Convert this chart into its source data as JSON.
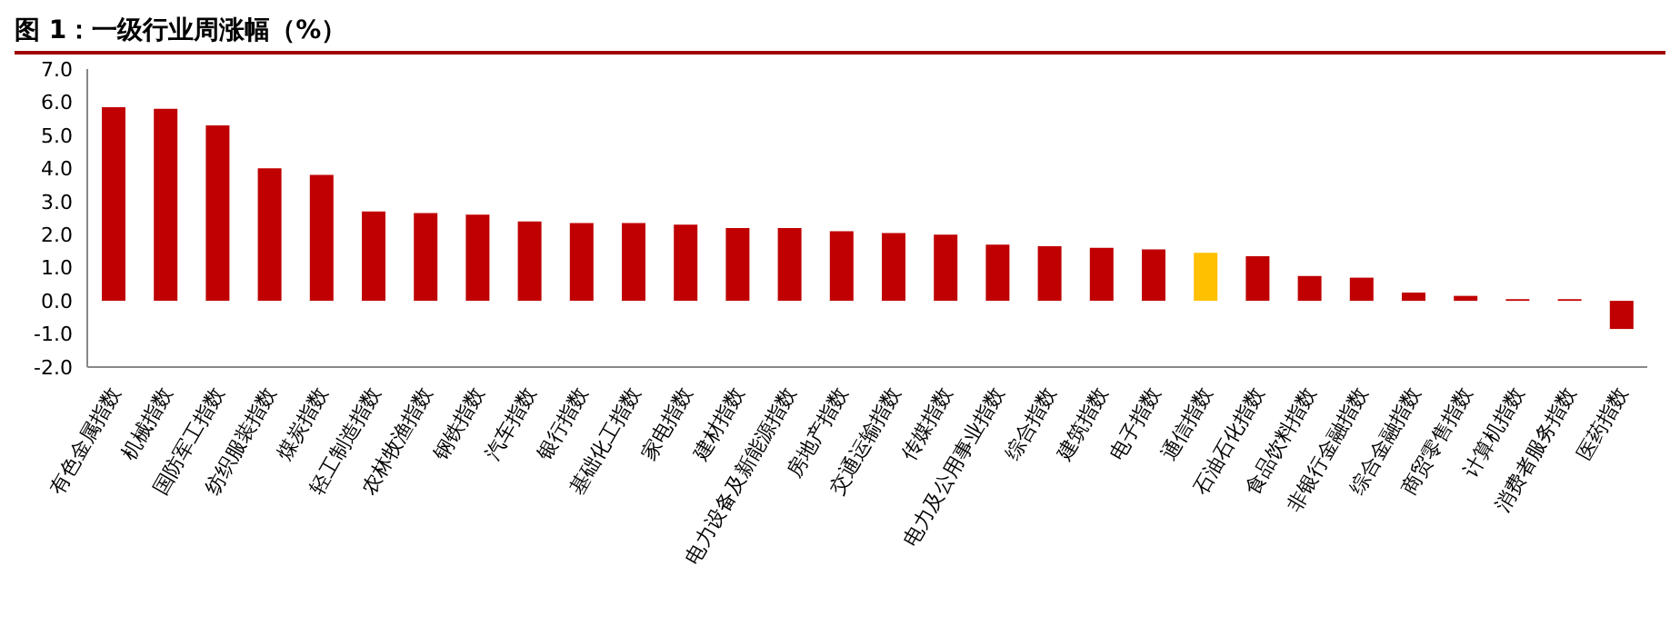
{
  "chart_data": {
    "type": "bar",
    "title": "图 1：一级行业周涨幅（%）",
    "categories": [
      "有色金属指数",
      "机械指数",
      "国防军工指数",
      "纺织服装指数",
      "煤炭指数",
      "轻工制造指数",
      "农林牧渔指数",
      "钢铁指数",
      "汽车指数",
      "银行指数",
      "基础化工指数",
      "家电指数",
      "建材指数",
      "电力设备及新能源指数",
      "房地产指数",
      "交通运输指数",
      "传媒指数",
      "电力及公用事业指数",
      "综合指数",
      "建筑指数",
      "电子指数",
      "通信指数",
      "石油石化指数",
      "食品饮料指数",
      "非银行金融指数",
      "综合金融指数",
      "商贸零售指数",
      "计算机指数",
      "消费者服务指数",
      "医药指数"
    ],
    "values": [
      5.85,
      5.8,
      5.3,
      4.0,
      3.8,
      2.7,
      2.65,
      2.6,
      2.4,
      2.35,
      2.35,
      2.3,
      2.2,
      2.2,
      2.1,
      2.05,
      2.0,
      1.7,
      1.65,
      1.6,
      1.55,
      1.45,
      1.35,
      0.75,
      0.7,
      0.25,
      0.15,
      0.05,
      0.05,
      -0.85
    ],
    "colors": [
      "#c00000",
      "#c00000",
      "#c00000",
      "#c00000",
      "#c00000",
      "#c00000",
      "#c00000",
      "#c00000",
      "#c00000",
      "#c00000",
      "#c00000",
      "#c00000",
      "#c00000",
      "#c00000",
      "#c00000",
      "#c00000",
      "#c00000",
      "#c00000",
      "#c00000",
      "#c00000",
      "#c00000",
      "#ffc000",
      "#c00000",
      "#c00000",
      "#c00000",
      "#c00000",
      "#c00000",
      "#c00000",
      "#c00000",
      "#c00000"
    ],
    "ylim": [
      -2,
      7
    ],
    "yticks": [
      {
        "value": -2,
        "label": "-2.0"
      },
      {
        "value": -1,
        "label": "-1.0"
      },
      {
        "value": 0,
        "label": "0.0"
      },
      {
        "value": 1,
        "label": "1.0"
      },
      {
        "value": 2,
        "label": "2.0"
      },
      {
        "value": 3,
        "label": "3.0"
      },
      {
        "value": 4,
        "label": "4.0"
      },
      {
        "value": 5,
        "label": "5.0"
      },
      {
        "value": 6,
        "label": "6.0"
      },
      {
        "value": 7,
        "label": "7.0"
      }
    ],
    "grid": false,
    "legend": false
  }
}
